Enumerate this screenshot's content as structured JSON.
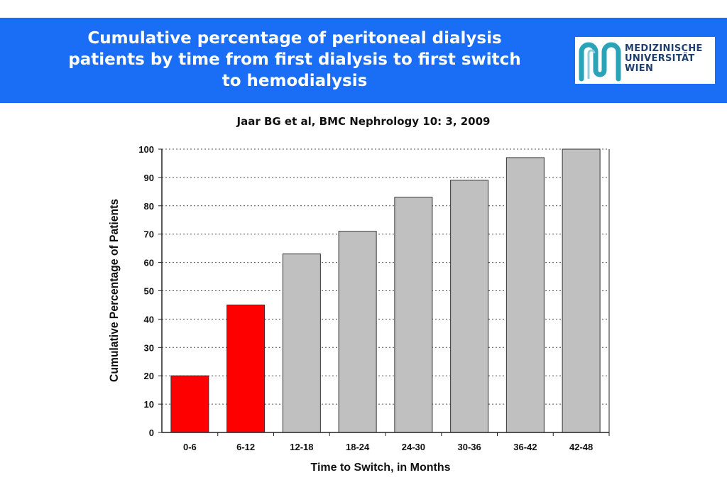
{
  "header": {
    "title_lines": [
      "Cumulative percentage of peritoneal dialysis",
      "patients by time from first dialysis to first switch",
      "to hemodialysis"
    ],
    "logo_lines": [
      "MEDIZINISCHE",
      "UNIVERSITÄT",
      "WIEN"
    ]
  },
  "citation": "Jaar BG et al, BMC Nephrology 10: 3, 2009",
  "colors": {
    "banner": "#1a6ef5",
    "highlight_bar": "#ff0000",
    "default_bar": "#c0c0c0",
    "logo_accent": "#2aa3b8"
  },
  "chart_data": {
    "type": "bar",
    "title": "",
    "xlabel": "Time to Switch, in Months",
    "ylabel": "Cumulative Percentage of Patients",
    "categories": [
      "0-6",
      "6-12",
      "12-18",
      "18-24",
      "24-30",
      "30-36",
      "36-42",
      "42-48"
    ],
    "values": [
      20,
      45,
      63,
      71,
      83,
      89,
      97,
      100
    ],
    "bar_colors": [
      "#ff0000",
      "#ff0000",
      "#c0c0c0",
      "#c0c0c0",
      "#c0c0c0",
      "#c0c0c0",
      "#c0c0c0",
      "#c0c0c0"
    ],
    "ylim": [
      0,
      100
    ],
    "yticks": [
      0,
      10,
      20,
      30,
      40,
      50,
      60,
      70,
      80,
      90,
      100
    ],
    "grid": true,
    "legend": "none"
  }
}
